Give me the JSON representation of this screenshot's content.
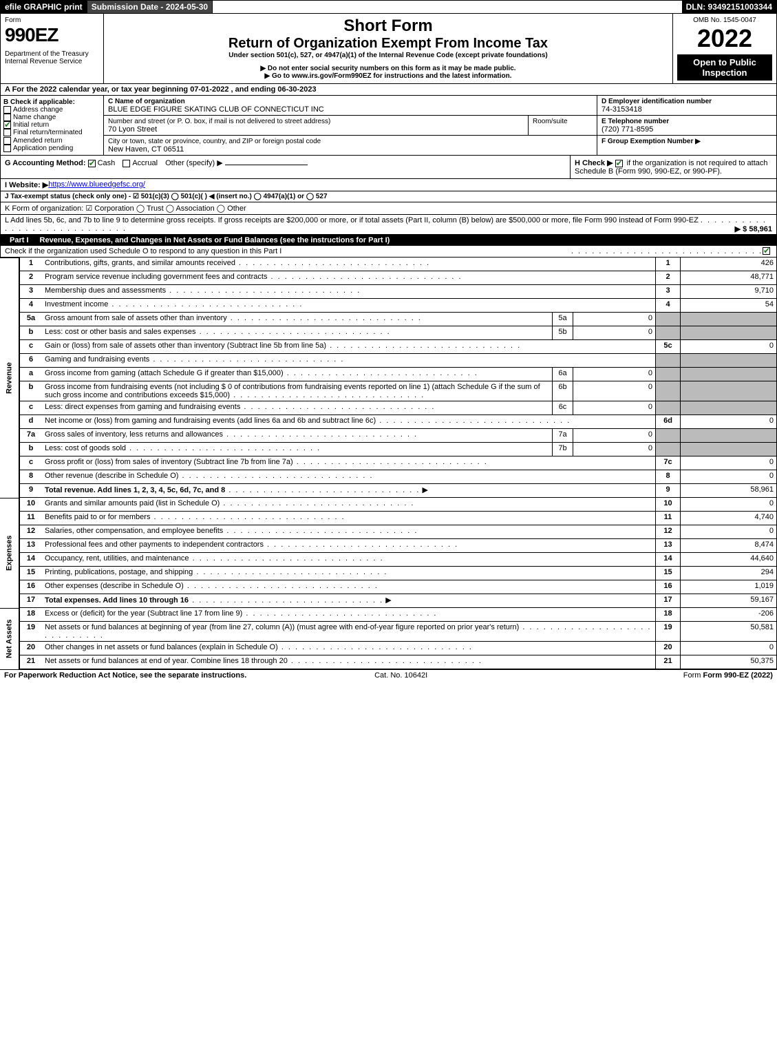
{
  "topbar": {
    "efile": "efile GRAPHIC print",
    "submission": "Submission Date - 2024-05-30",
    "dln": "DLN: 93492151003344"
  },
  "header": {
    "form_label": "Form",
    "form_no": "990EZ",
    "dept": "Department of the Treasury\nInternal Revenue Service",
    "short": "Short Form",
    "title": "Return of Organization Exempt From Income Tax",
    "subtitle": "Under section 501(c), 527, or 4947(a)(1) of the Internal Revenue Code (except private foundations)",
    "note1": "▶ Do not enter social security numbers on this form as it may be made public.",
    "note2": "▶ Go to www.irs.gov/Form990EZ for instructions and the latest information.",
    "omb": "OMB No. 1545-0047",
    "year": "2022",
    "inspect": "Open to Public Inspection"
  },
  "lineA": "A  For the 2022 calendar year, or tax year beginning 07-01-2022 , and ending 06-30-2023",
  "boxB": {
    "title": "B  Check if applicable:",
    "items": [
      "Address change",
      "Name change",
      "Initial return",
      "Final return/terminated",
      "Amended return",
      "Application pending"
    ],
    "checked": [
      false,
      false,
      true,
      false,
      false,
      false
    ]
  },
  "boxC": {
    "c_label": "C Name of organization",
    "org": "BLUE EDGE FIGURE SKATING CLUB OF CONNECTICUT INC",
    "addr_label": "Number and street (or P. O. box, if mail is not delivered to street address)",
    "room_label": "Room/suite",
    "addr": "70 Lyon Street",
    "city_label": "City or town, state or province, country, and ZIP or foreign postal code",
    "city": "New Haven, CT  06511"
  },
  "boxDE": {
    "d_label": "D Employer identification number",
    "ein": "74-3153418",
    "e_label": "E Telephone number",
    "phone": "(720) 771-8595",
    "f_label": "F Group Exemption Number  ▶"
  },
  "gRow": {
    "g": "G Accounting Method:",
    "cash": "Cash",
    "accrual": "Accrual",
    "other": "Other (specify) ▶",
    "h": "H  Check ▶",
    "h2": "if the organization is not required to attach Schedule B (Form 990, 990-EZ, or 990-PF)."
  },
  "iRow": {
    "label": "I Website: ▶",
    "url": "https://www.blueedgefsc.org/"
  },
  "jRow": "J Tax-exempt status (check only one) -  ☑ 501(c)(3)  ◯ 501(c)(  ) ◀ (insert no.)  ◯ 4947(a)(1) or  ◯ 527",
  "kRow": "K Form of organization:  ☑ Corporation  ◯ Trust  ◯ Association  ◯ Other",
  "lRow": {
    "text": "L Add lines 5b, 6c, and 7b to line 9 to determine gross receipts. If gross receipts are $200,000 or more, or if total assets (Part II, column (B) below) are $500,000 or more, file Form 990 instead of Form 990-EZ",
    "amount": "▶ $ 58,961"
  },
  "part1": {
    "title": "Revenue, Expenses, and Changes in Net Assets or Fund Balances (see the instructions for Part I)",
    "check": "Check if the organization used Schedule O to respond to any question in this Part I"
  },
  "sidelabels": {
    "rev": "Revenue",
    "exp": "Expenses",
    "net": "Net Assets"
  },
  "lines": {
    "l1": {
      "n": "1",
      "d": "Contributions, gifts, grants, and similar amounts received",
      "ln": "1",
      "amt": "426"
    },
    "l2": {
      "n": "2",
      "d": "Program service revenue including government fees and contracts",
      "ln": "2",
      "amt": "48,771"
    },
    "l3": {
      "n": "3",
      "d": "Membership dues and assessments",
      "ln": "3",
      "amt": "9,710"
    },
    "l4": {
      "n": "4",
      "d": "Investment income",
      "ln": "4",
      "amt": "54"
    },
    "l5a": {
      "n": "5a",
      "d": "Gross amount from sale of assets other than inventory",
      "sn": "5a",
      "sv": "0"
    },
    "l5b": {
      "n": "b",
      "d": "Less: cost or other basis and sales expenses",
      "sn": "5b",
      "sv": "0"
    },
    "l5c": {
      "n": "c",
      "d": "Gain or (loss) from sale of assets other than inventory (Subtract line 5b from line 5a)",
      "ln": "5c",
      "amt": "0"
    },
    "l6": {
      "n": "6",
      "d": "Gaming and fundraising events"
    },
    "l6a": {
      "n": "a",
      "d": "Gross income from gaming (attach Schedule G if greater than $15,000)",
      "sn": "6a",
      "sv": "0"
    },
    "l6b": {
      "n": "b",
      "d": "Gross income from fundraising events (not including $  0                      of contributions from fundraising events reported on line 1) (attach Schedule G if the sum of such gross income and contributions exceeds $15,000)",
      "sn": "6b",
      "sv": "0"
    },
    "l6c": {
      "n": "c",
      "d": "Less: direct expenses from gaming and fundraising events",
      "sn": "6c",
      "sv": "0"
    },
    "l6d": {
      "n": "d",
      "d": "Net income or (loss) from gaming and fundraising events (add lines 6a and 6b and subtract line 6c)",
      "ln": "6d",
      "amt": "0"
    },
    "l7a": {
      "n": "7a",
      "d": "Gross sales of inventory, less returns and allowances",
      "sn": "7a",
      "sv": "0"
    },
    "l7b": {
      "n": "b",
      "d": "Less: cost of goods sold",
      "sn": "7b",
      "sv": "0"
    },
    "l7c": {
      "n": "c",
      "d": "Gross profit or (loss) from sales of inventory (Subtract line 7b from line 7a)",
      "ln": "7c",
      "amt": "0"
    },
    "l8": {
      "n": "8",
      "d": "Other revenue (describe in Schedule O)",
      "ln": "8",
      "amt": "0"
    },
    "l9": {
      "n": "9",
      "d": "Total revenue. Add lines 1, 2, 3, 4, 5c, 6d, 7c, and 8",
      "ln": "9",
      "amt": "58,961",
      "bold": true
    },
    "l10": {
      "n": "10",
      "d": "Grants and similar amounts paid (list in Schedule O)",
      "ln": "10",
      "amt": "0"
    },
    "l11": {
      "n": "11",
      "d": "Benefits paid to or for members",
      "ln": "11",
      "amt": "4,740"
    },
    "l12": {
      "n": "12",
      "d": "Salaries, other compensation, and employee benefits",
      "ln": "12",
      "amt": "0"
    },
    "l13": {
      "n": "13",
      "d": "Professional fees and other payments to independent contractors",
      "ln": "13",
      "amt": "8,474"
    },
    "l14": {
      "n": "14",
      "d": "Occupancy, rent, utilities, and maintenance",
      "ln": "14",
      "amt": "44,640"
    },
    "l15": {
      "n": "15",
      "d": "Printing, publications, postage, and shipping",
      "ln": "15",
      "amt": "294"
    },
    "l16": {
      "n": "16",
      "d": "Other expenses (describe in Schedule O)",
      "ln": "16",
      "amt": "1,019"
    },
    "l17": {
      "n": "17",
      "d": "Total expenses. Add lines 10 through 16",
      "ln": "17",
      "amt": "59,167",
      "bold": true
    },
    "l18": {
      "n": "18",
      "d": "Excess or (deficit) for the year (Subtract line 17 from line 9)",
      "ln": "18",
      "amt": "-206"
    },
    "l19": {
      "n": "19",
      "d": "Net assets or fund balances at beginning of year (from line 27, column (A)) (must agree with end-of-year figure reported on prior year's return)",
      "ln": "19",
      "amt": "50,581"
    },
    "l20": {
      "n": "20",
      "d": "Other changes in net assets or fund balances (explain in Schedule O)",
      "ln": "20",
      "amt": "0"
    },
    "l21": {
      "n": "21",
      "d": "Net assets or fund balances at end of year. Combine lines 18 through 20",
      "ln": "21",
      "amt": "50,375"
    }
  },
  "footer": {
    "left": "For Paperwork Reduction Act Notice, see the separate instructions.",
    "mid": "Cat. No. 10642I",
    "right": "Form 990-EZ (2022)"
  }
}
